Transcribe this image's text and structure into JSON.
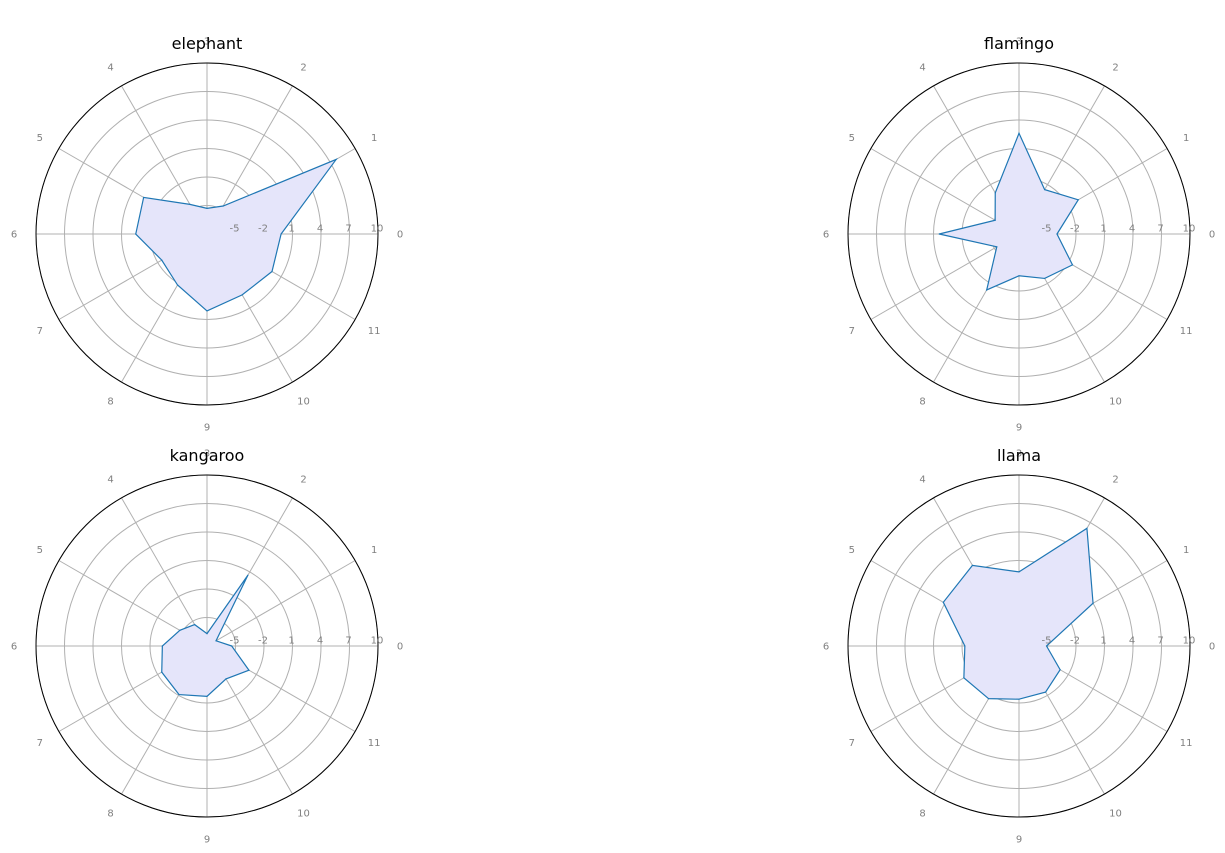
{
  "chart_data": [
    {
      "type": "radar",
      "title": "elephant",
      "angle_ticks": [
        "0",
        "1",
        "2",
        "3",
        "4",
        "5",
        "6",
        "7",
        "8",
        "9",
        "10",
        "11"
      ],
      "radial_ticks": [
        "-5",
        "-2",
        "1",
        "4",
        "7",
        "10"
      ],
      "rlim": [
        -8,
        10
      ],
      "values": [
        -0.2,
        7.7,
        -4.6,
        -5.3,
        -4.4,
        -0.3,
        -0.5,
        -2.5,
        -1.8,
        0.1,
        -0.6,
        -0.1
      ],
      "line_color": "#1f77b4",
      "fill_color": "#e5e5fa",
      "grid": true
    },
    {
      "type": "radar",
      "title": "flamingo",
      "angle_ticks": [
        "0",
        "1",
        "2",
        "3",
        "4",
        "5",
        "6",
        "7",
        "8",
        "9",
        "10",
        "11"
      ],
      "radial_ticks": [
        "-5",
        "-2",
        "1",
        "4",
        "7",
        "10"
      ],
      "rlim": [
        -8,
        10
      ],
      "values": [
        -4.0,
        -0.8,
        -2.6,
        2.6,
        -3.0,
        -5.1,
        0.4,
        -5.3,
        -1.2,
        -3.6,
        -2.6,
        -1.5
      ],
      "line_color": "#1f77b4",
      "fill_color": "#e5e5fa",
      "grid": true
    },
    {
      "type": "radar",
      "title": "kangaroo",
      "angle_ticks": [
        "0",
        "1",
        "2",
        "3",
        "4",
        "5",
        "6",
        "7",
        "8",
        "9",
        "10",
        "11"
      ],
      "radial_ticks": [
        "-5",
        "-2",
        "1",
        "4",
        "7",
        "10"
      ],
      "rlim": [
        -8,
        10
      ],
      "values": [
        -5.4,
        -6.9,
        0.6,
        -6.7,
        -5.4,
        -4.7,
        -3.3,
        -2.5,
        -2.1,
        -2.7,
        -4.0,
        -2.9
      ],
      "line_color": "#1f77b4",
      "fill_color": "#e5e5fa",
      "grid": true
    },
    {
      "type": "radar",
      "title": "llama",
      "angle_ticks": [
        "0",
        "1",
        "2",
        "3",
        "4",
        "5",
        "6",
        "7",
        "8",
        "9",
        "10",
        "11"
      ],
      "radial_ticks": [
        "-5",
        "-2",
        "1",
        "4",
        "7",
        "10"
      ],
      "rlim": [
        -8,
        10
      ],
      "values": [
        -5.1,
        1.0,
        6.3,
        -0.2,
        1.8,
        1.2,
        -2.3,
        -1.3,
        -1.6,
        -2.4,
        -2.4,
        -3.0
      ],
      "line_color": "#1f77b4",
      "fill_color": "#e5e5fa",
      "grid": true
    }
  ]
}
